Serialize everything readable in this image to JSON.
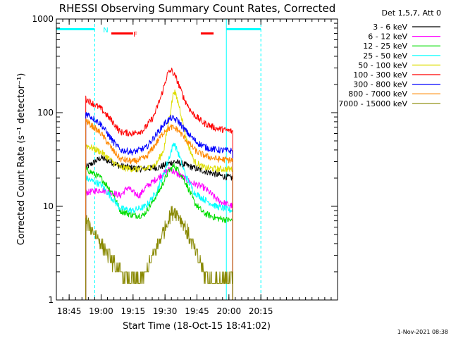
{
  "chart_data": {
    "type": "line",
    "title": "RHESSI Observing Summary Count Rates, Corrected",
    "xlabel": "Start Time (18-Oct-15 18:41:02)",
    "ylabel": "Corrected Count Rate (s⁻¹ detector⁻¹)",
    "yscale": "log",
    "ylim": [
      1,
      1000
    ],
    "xlim_minutes": [
      -3,
      19
    ],
    "x_ticks": [
      {
        "label": "18:45",
        "t": -2.0
      },
      {
        "label": "19:00",
        "t": 0.5
      },
      {
        "label": "19:15",
        "t": 3.0
      },
      {
        "label": "19:30",
        "t": 5.5
      },
      {
        "label": "19:45",
        "t": 8.0
      },
      {
        "label": "20:00",
        "t": 10.5
      },
      {
        "label": "20:15",
        "t": 13.0
      }
    ],
    "y_ticks": [
      {
        "label": "1",
        "v": 1
      },
      {
        "label": "10",
        "v": 10
      },
      {
        "label": "100",
        "v": 100
      },
      {
        "label": "1000",
        "v": 1000
      }
    ],
    "legend_header": "Det 1,5,7, Att 0",
    "timestamp": "1-Nov-2021 08:38",
    "annotations": {
      "night_label": "N",
      "flare_label": "F",
      "night_intervals": [
        [
          -3,
          0.0
        ],
        [
          10.3,
          13.0
        ]
      ],
      "flare_intervals": [
        [
          1.3,
          3.0
        ],
        [
          8.3,
          9.3
        ]
      ],
      "vlines_solid": [
        -3,
        10.3
      ],
      "vlines_dashed": [
        0.0,
        13.0
      ],
      "data_start": -0.7,
      "data_end": 10.8
    },
    "series": [
      {
        "name": "3 - 6 keV",
        "color": "#000000",
        "knots": [
          [
            -0.7,
            26
          ],
          [
            0.5,
            33
          ],
          [
            2,
            27
          ],
          [
            3.5,
            25
          ],
          [
            5,
            26
          ],
          [
            6.2,
            30
          ],
          [
            7,
            28
          ],
          [
            8,
            25
          ],
          [
            9,
            23
          ],
          [
            10,
            21
          ],
          [
            10.8,
            20
          ]
        ]
      },
      {
        "name": "6 - 12 keV",
        "color": "#ff00ff",
        "knots": [
          [
            -0.7,
            14
          ],
          [
            0.5,
            15
          ],
          [
            1.4,
            14
          ],
          [
            2,
            13
          ],
          [
            2.6,
            16
          ],
          [
            3,
            14
          ],
          [
            3.5,
            13
          ],
          [
            4,
            16
          ],
          [
            4.7,
            19
          ],
          [
            5.3,
            22
          ],
          [
            5.9,
            25
          ],
          [
            6.5,
            22
          ],
          [
            7,
            20
          ],
          [
            7.5,
            18
          ],
          [
            8,
            17
          ],
          [
            8.5,
            16
          ],
          [
            9,
            14
          ],
          [
            9.5,
            12
          ],
          [
            10,
            11
          ],
          [
            10.8,
            10
          ]
        ]
      },
      {
        "name": "12 - 25 keV",
        "color": "#00dd00",
        "knots": [
          [
            -0.7,
            25
          ],
          [
            0.5,
            20
          ],
          [
            1.4,
            14
          ],
          [
            2,
            9
          ],
          [
            3,
            8
          ],
          [
            3.8,
            8
          ],
          [
            4.5,
            11
          ],
          [
            5.2,
            16
          ],
          [
            5.8,
            24
          ],
          [
            6.2,
            27
          ],
          [
            6.6,
            24
          ],
          [
            7.2,
            17
          ],
          [
            7.8,
            11
          ],
          [
            8.5,
            8.5
          ],
          [
            9.5,
            7.5
          ],
          [
            10.8,
            7
          ]
        ]
      },
      {
        "name": "25 - 50 keV",
        "color": "#00ffff",
        "knots": [
          [
            -0.7,
            20
          ],
          [
            0.5,
            17
          ],
          [
            1.4,
            12
          ],
          [
            2,
            9.5
          ],
          [
            3,
            9
          ],
          [
            4,
            10
          ],
          [
            4.8,
            14
          ],
          [
            5.4,
            22
          ],
          [
            5.9,
            36
          ],
          [
            6.2,
            48
          ],
          [
            6.6,
            35
          ],
          [
            7.2,
            20
          ],
          [
            7.8,
            14
          ],
          [
            8.5,
            12
          ],
          [
            9.5,
            10
          ],
          [
            10.8,
            9
          ]
        ]
      },
      {
        "name": "50 - 100 keV",
        "color": "#dddd00",
        "knots": [
          [
            -0.7,
            45
          ],
          [
            0.5,
            38
          ],
          [
            1.4,
            30
          ],
          [
            2,
            26
          ],
          [
            3,
            25
          ],
          [
            4,
            25
          ],
          [
            4.8,
            28
          ],
          [
            5.4,
            40
          ],
          [
            5.9,
            100
          ],
          [
            6.2,
            175
          ],
          [
            6.6,
            120
          ],
          [
            7.2,
            50
          ],
          [
            7.8,
            30
          ],
          [
            8.5,
            26
          ],
          [
            9.5,
            25
          ],
          [
            10.8,
            25
          ]
        ]
      },
      {
        "name": "100 - 300 keV",
        "color": "#ff0000",
        "knots": [
          [
            -0.7,
            140
          ],
          [
            0.5,
            110
          ],
          [
            1.4,
            80
          ],
          [
            2,
            62
          ],
          [
            3,
            60
          ],
          [
            3.8,
            65
          ],
          [
            4.6,
            90
          ],
          [
            5.2,
            150
          ],
          [
            5.7,
            260
          ],
          [
            6,
            285
          ],
          [
            6.4,
            230
          ],
          [
            7,
            140
          ],
          [
            7.6,
            100
          ],
          [
            8.5,
            78
          ],
          [
            9.5,
            68
          ],
          [
            10.8,
            63
          ]
        ]
      },
      {
        "name": "300 - 800 keV",
        "color": "#0000ff",
        "knots": [
          [
            -0.7,
            100
          ],
          [
            0.5,
            75
          ],
          [
            1.4,
            50
          ],
          [
            2,
            40
          ],
          [
            3,
            38
          ],
          [
            4,
            42
          ],
          [
            4.8,
            58
          ],
          [
            5.5,
            78
          ],
          [
            6,
            88
          ],
          [
            6.5,
            82
          ],
          [
            7.2,
            62
          ],
          [
            8,
            48
          ],
          [
            8.8,
            42
          ],
          [
            9.6,
            40
          ],
          [
            10.8,
            39
          ]
        ]
      },
      {
        "name": "800 - 7000 keV",
        "color": "#ff8800",
        "knots": [
          [
            -0.7,
            82
          ],
          [
            0.5,
            60
          ],
          [
            1.4,
            40
          ],
          [
            2,
            32
          ],
          [
            3,
            30
          ],
          [
            4,
            33
          ],
          [
            4.8,
            47
          ],
          [
            5.5,
            65
          ],
          [
            6,
            70
          ],
          [
            6.5,
            66
          ],
          [
            7.2,
            50
          ],
          [
            8,
            38
          ],
          [
            8.8,
            34
          ],
          [
            9.6,
            32
          ],
          [
            10.8,
            31
          ]
        ]
      },
      {
        "name": "7000 - 15000 keV",
        "color": "#888800",
        "knots": [
          [
            -0.7,
            6.8
          ],
          [
            0,
            5.2
          ],
          [
            0.7,
            3.6
          ],
          [
            1.4,
            2.5
          ],
          [
            2,
            1.9
          ],
          [
            2.7,
            1.6
          ],
          [
            3.5,
            1.6
          ],
          [
            4.2,
            2.2
          ],
          [
            4.8,
            3.5
          ],
          [
            5.4,
            5.5
          ],
          [
            5.9,
            8
          ],
          [
            6.2,
            9
          ],
          [
            6.6,
            8
          ],
          [
            7.2,
            5.5
          ],
          [
            7.8,
            3.5
          ],
          [
            8.4,
            2.2
          ],
          [
            9,
            1.6
          ],
          [
            9.8,
            1.6
          ],
          [
            10.8,
            1.8
          ]
        ]
      }
    ]
  }
}
